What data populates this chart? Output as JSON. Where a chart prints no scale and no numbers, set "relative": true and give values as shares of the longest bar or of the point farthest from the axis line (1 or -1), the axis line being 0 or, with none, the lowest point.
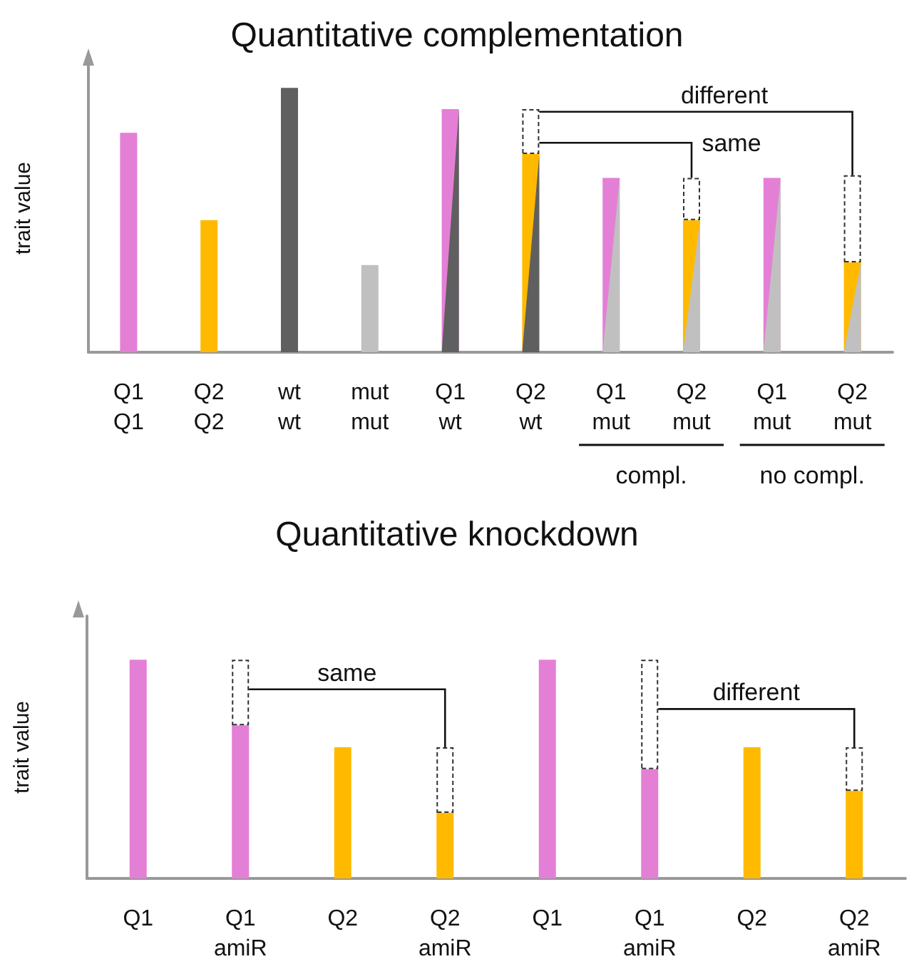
{
  "chart_data": [
    {
      "type": "bar",
      "title": "Quantitative complementation",
      "ylabel": "trait value",
      "relative": true,
      "stacked": true,
      "categories": [
        "Q1\nQ1",
        "Q2\nQ2",
        "wt\nwt",
        "mut\nmut",
        "Q1\nwt",
        "Q2\nwt",
        "Q1\nmut",
        "Q2\nmut",
        "Q1\nmut",
        "Q2\nmut"
      ],
      "series": [
        {
          "values": [
            0.83,
            0.5,
            1,
            0.33,
            0.92,
            0.75,
            0.66,
            0.5,
            0.66,
            0.34
          ],
          "colors": [
            "#e47fd6",
            "#ffba00",
            "#5f5f5f",
            "#c0c0c0",
            "#e47fd6",
            "#ffba00",
            "#e47fd6",
            "#ffba00",
            "#e47fd6",
            "#ffba00"
          ]
        },
        {
          "values": [
            null,
            null,
            null,
            null,
            null,
            0.17,
            null,
            0.16,
            null,
            0.33
          ],
          "color": "#333333",
          "line_style": "dashed"
        }
      ],
      "annotations": [
        "different",
        "same",
        "compl.",
        "no compl."
      ],
      "grid": false
    },
    {
      "type": "bar",
      "title": "Quantitative knockdown",
      "ylabel": "trait value",
      "relative": true,
      "stacked": true,
      "categories": [
        "Q1",
        "Q1\namiR",
        "Q2",
        "Q2\namiR",
        "Q1",
        "Q1\namiR",
        "Q2",
        "Q2\namiR"
      ],
      "series": [
        {
          "values": [
            1,
            0.7,
            0.6,
            0.3,
            1,
            0.5,
            0.6,
            0.4
          ],
          "colors": [
            "#e47fd6",
            "#e47fd6",
            "#ffba00",
            "#ffba00",
            "#e47fd6",
            "#e47fd6",
            "#ffba00",
            "#ffba00"
          ]
        },
        {
          "values": [
            null,
            0.3,
            null,
            0.3,
            null,
            0.5,
            null,
            0.2
          ],
          "color": "#333333",
          "line_style": "dashed"
        }
      ],
      "annotations": [
        "same",
        "different"
      ],
      "grid": false
    }
  ]
}
